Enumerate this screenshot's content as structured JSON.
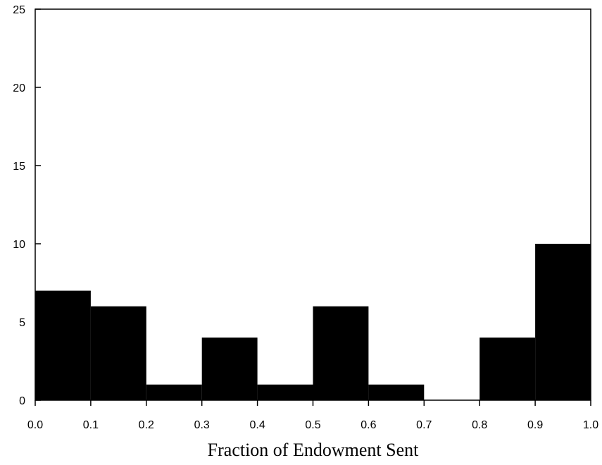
{
  "chart_data": {
    "type": "bar",
    "xlabel": "Fraction of Endowment Sent",
    "ylabel": "",
    "title": "",
    "bins": [
      {
        "x0": 0.0,
        "x1": 0.1,
        "value": 7
      },
      {
        "x0": 0.1,
        "x1": 0.2,
        "value": 6
      },
      {
        "x0": 0.2,
        "x1": 0.3,
        "value": 1
      },
      {
        "x0": 0.3,
        "x1": 0.4,
        "value": 4
      },
      {
        "x0": 0.4,
        "x1": 0.5,
        "value": 1
      },
      {
        "x0": 0.5,
        "x1": 0.6,
        "value": 6
      },
      {
        "x0": 0.6,
        "x1": 0.7,
        "value": 1
      },
      {
        "x0": 0.7,
        "x1": 0.8,
        "value": 0
      },
      {
        "x0": 0.8,
        "x1": 0.9,
        "value": 4
      },
      {
        "x0": 0.9,
        "x1": 1.0,
        "value": 10
      }
    ],
    "xlim": [
      0,
      1
    ],
    "ylim": [
      0,
      25
    ],
    "x_ticks": [
      "0.0",
      "0.1",
      "0.2",
      "0.3",
      "0.4",
      "0.5",
      "0.6",
      "0.7",
      "0.8",
      "0.9",
      "1.0"
    ],
    "y_ticks": [
      "0",
      "5",
      "10",
      "15",
      "20",
      "25"
    ],
    "grid": false,
    "bar_color": "#000000"
  }
}
